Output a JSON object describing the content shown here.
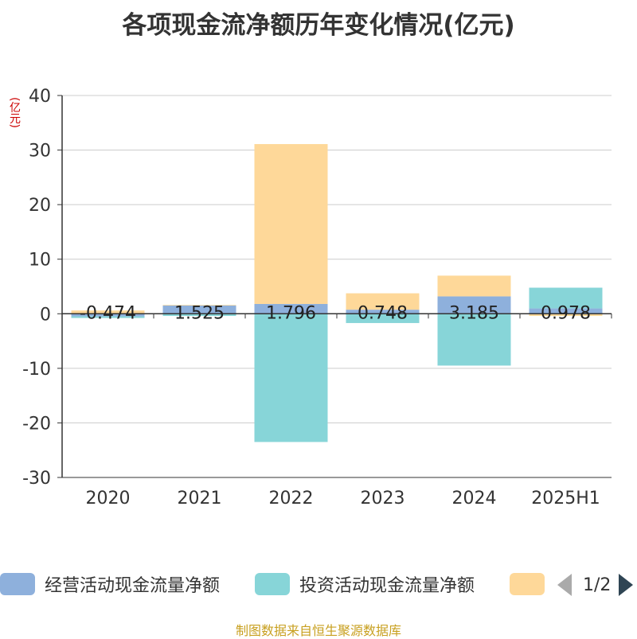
{
  "title": "各项现金流净额历年变化情况(亿元)",
  "unit_label": "(亿元)",
  "source": "制图数据来自恒生聚源数据库",
  "pager": {
    "text": "1/2"
  },
  "colors": {
    "operating": "#8eb0dc",
    "investing": "#87d5d8",
    "financing": "#fed899",
    "grid": "#cccccc",
    "axis": "#333333"
  },
  "chart_data": {
    "type": "bar",
    "stacked": true,
    "categories": [
      "2020",
      "2021",
      "2022",
      "2023",
      "2024",
      "2025H1"
    ],
    "ylim": [
      -30,
      40
    ],
    "yticks": [
      40,
      30,
      20,
      10,
      0,
      -10,
      -20,
      -30
    ],
    "grid": true,
    "legend_position": "bottom",
    "series": [
      {
        "name": "经营活动现金流量净额",
        "color": "#8eb0dc",
        "values": [
          -0.474,
          1.525,
          1.796,
          0.748,
          3.185,
          0.978
        ],
        "labels": [
          "-0.474",
          "1.525",
          "1.796",
          "0.748",
          "3.185",
          "0.978"
        ]
      },
      {
        "name": "投资活动现金流量净额",
        "color": "#87d5d8",
        "values": [
          -0.3,
          -0.4,
          -23.5,
          -1.7,
          -9.5,
          3.8
        ]
      },
      {
        "name": "",
        "color": "#fed899",
        "values": [
          0.6,
          0.1,
          29.3,
          3.0,
          3.8,
          -0.4
        ]
      }
    ]
  }
}
